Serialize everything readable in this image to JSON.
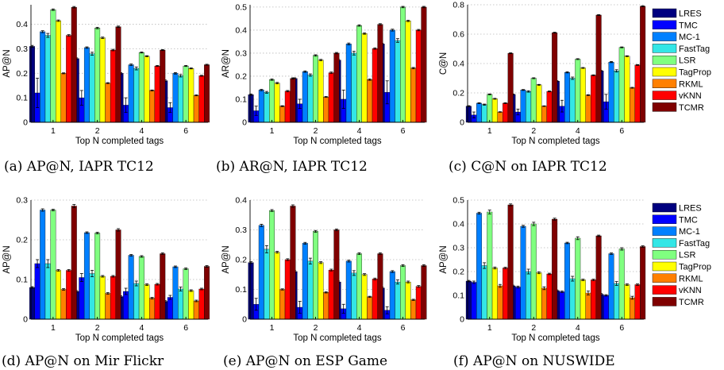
{
  "methods": [
    "LRES",
    "TMC",
    "MC-1",
    "FastTag",
    "LSR",
    "TagProp",
    "RKML",
    "vKNN",
    "TCMR"
  ],
  "colors": {
    "LRES": "#00007f",
    "TMC": "#0000ff",
    "MC-1": "#0080ff",
    "FastTag": "#33e6e6",
    "LSR": "#80ff80",
    "TagProp": "#ffff00",
    "RKML": "#ff8000",
    "vKNN": "#ff0000",
    "TCMR": "#7f0000"
  },
  "chart_data": [
    {
      "type": "bar",
      "caption": "(a) AP@N, IAPR TC12",
      "xlabel": "Top N completed tags",
      "ylabel": "AP@N",
      "categories": [
        "1",
        "2",
        "4",
        "6"
      ],
      "ylim": [
        0,
        0.48
      ],
      "yticks": [
        0,
        0.1,
        0.2,
        0.3,
        0.4
      ],
      "yticklabels": [
        "0",
        "0.1",
        "0.2",
        "0.3",
        "0.4"
      ],
      "series": [
        {
          "name": "LRES",
          "values": [
            0.31,
            0.26,
            0.2,
            0.17
          ],
          "err": [
            0.004,
            0.003,
            0.003,
            0.003
          ]
        },
        {
          "name": "TMC",
          "values": [
            0.12,
            0.1,
            0.07,
            0.06
          ],
          "err": [
            0.06,
            0.03,
            0.03,
            0.02
          ]
        },
        {
          "name": "MC-1",
          "values": [
            0.37,
            0.305,
            0.235,
            0.2
          ],
          "err": [
            0.004,
            0.003,
            0.003,
            0.003
          ]
        },
        {
          "name": "FastTag",
          "values": [
            0.355,
            0.28,
            0.22,
            0.19
          ],
          "err": [
            0.008,
            0.006,
            0.006,
            0.005
          ]
        },
        {
          "name": "LSR",
          "values": [
            0.46,
            0.385,
            0.285,
            0.23
          ],
          "err": [
            0.003,
            0.003,
            0.002,
            0.002
          ]
        },
        {
          "name": "TagProp",
          "values": [
            0.415,
            0.345,
            0.27,
            0.22
          ],
          "err": [
            0.003,
            0.003,
            0.002,
            0.002
          ]
        },
        {
          "name": "RKML",
          "values": [
            0.2,
            0.16,
            0.13,
            0.11
          ],
          "err": [
            0.002,
            0.002,
            0.002,
            0.002
          ]
        },
        {
          "name": "vKNN",
          "values": [
            0.355,
            0.295,
            0.23,
            0.19
          ],
          "err": [
            0.003,
            0.003,
            0.002,
            0.002
          ]
        },
        {
          "name": "TCMR",
          "values": [
            0.47,
            0.39,
            0.295,
            0.235
          ],
          "err": [
            0.003,
            0.003,
            0.002,
            0.002
          ]
        }
      ]
    },
    {
      "type": "bar",
      "caption": "(b) AR@N, IAPR TC12",
      "xlabel": "Top N completed tags",
      "ylabel": "AR@N",
      "categories": [
        "1",
        "2",
        "4",
        "6"
      ],
      "ylim": [
        0,
        0.51
      ],
      "yticks": [
        0,
        0.1,
        0.2,
        0.3,
        0.4,
        0.5
      ],
      "yticklabels": [
        "0",
        "0.1",
        "0.2",
        "0.3",
        "0.4",
        "0.5"
      ],
      "series": [
        {
          "name": "LRES",
          "values": [
            0.12,
            0.19,
            0.27,
            0.34
          ],
          "err": [
            0.003,
            0.003,
            0.003,
            0.003
          ]
        },
        {
          "name": "TMC",
          "values": [
            0.05,
            0.08,
            0.1,
            0.13
          ],
          "err": [
            0.02,
            0.02,
            0.04,
            0.05
          ]
        },
        {
          "name": "MC-1",
          "values": [
            0.14,
            0.22,
            0.34,
            0.4
          ],
          "err": [
            0.003,
            0.003,
            0.004,
            0.004
          ]
        },
        {
          "name": "FastTag",
          "values": [
            0.13,
            0.205,
            0.3,
            0.355
          ],
          "err": [
            0.004,
            0.005,
            0.008,
            0.008
          ]
        },
        {
          "name": "LSR",
          "values": [
            0.185,
            0.29,
            0.42,
            0.5
          ],
          "err": [
            0.003,
            0.003,
            0.003,
            0.003
          ]
        },
        {
          "name": "TagProp",
          "values": [
            0.17,
            0.27,
            0.385,
            0.44
          ],
          "err": [
            0.003,
            0.003,
            0.003,
            0.003
          ]
        },
        {
          "name": "RKML",
          "values": [
            0.07,
            0.11,
            0.185,
            0.235
          ],
          "err": [
            0.002,
            0.002,
            0.003,
            0.003
          ]
        },
        {
          "name": "vKNN",
          "values": [
            0.135,
            0.215,
            0.32,
            0.4
          ],
          "err": [
            0.003,
            0.003,
            0.003,
            0.003
          ]
        },
        {
          "name": "TCMR",
          "values": [
            0.19,
            0.3,
            0.425,
            0.5
          ],
          "err": [
            0.003,
            0.003,
            0.003,
            0.003
          ]
        }
      ]
    },
    {
      "type": "bar",
      "caption": "(c) C@N on IAPR TC12",
      "xlabel": "Top N completed tags",
      "ylabel": "C@N",
      "categories": [
        "1",
        "2",
        "4",
        "6"
      ],
      "ylim": [
        0,
        0.8
      ],
      "yticks": [
        0,
        0.2,
        0.4,
        0.6,
        0.8
      ],
      "yticklabels": [
        "0",
        "0.2",
        "0.4",
        "0.6",
        "0.8"
      ],
      "series": [
        {
          "name": "LRES",
          "values": [
            0.11,
            0.19,
            0.28,
            0.35
          ],
          "err": [
            0.003,
            0.003,
            0.003,
            0.003
          ]
        },
        {
          "name": "TMC",
          "values": [
            0.05,
            0.07,
            0.11,
            0.14
          ],
          "err": [
            0.02,
            0.02,
            0.04,
            0.05
          ]
        },
        {
          "name": "MC-1",
          "values": [
            0.13,
            0.22,
            0.34,
            0.41
          ],
          "err": [
            0.003,
            0.003,
            0.004,
            0.004
          ]
        },
        {
          "name": "FastTag",
          "values": [
            0.12,
            0.21,
            0.3,
            0.35
          ],
          "err": [
            0.004,
            0.005,
            0.008,
            0.008
          ]
        },
        {
          "name": "LSR",
          "values": [
            0.19,
            0.3,
            0.43,
            0.51
          ],
          "err": [
            0.003,
            0.003,
            0.003,
            0.003
          ]
        },
        {
          "name": "TagProp",
          "values": [
            0.16,
            0.255,
            0.37,
            0.45
          ],
          "err": [
            0.003,
            0.003,
            0.003,
            0.003
          ]
        },
        {
          "name": "RKML",
          "values": [
            0.07,
            0.11,
            0.185,
            0.235
          ],
          "err": [
            0.002,
            0.002,
            0.003,
            0.003
          ]
        },
        {
          "name": "vKNN",
          "values": [
            0.13,
            0.21,
            0.32,
            0.39
          ],
          "err": [
            0.003,
            0.003,
            0.003,
            0.003
          ]
        },
        {
          "name": "TCMR",
          "values": [
            0.47,
            0.61,
            0.73,
            0.79
          ],
          "err": [
            0.003,
            0.003,
            0.003,
            0.003
          ]
        }
      ]
    },
    {
      "type": "bar",
      "caption": "(d) AP@N on Mir Flickr",
      "xlabel": "Top N completed tags",
      "ylabel": "AP@N",
      "categories": [
        "1",
        "2",
        "4",
        "6"
      ],
      "ylim": [
        0,
        0.3
      ],
      "yticks": [
        0,
        0.1,
        0.2,
        0.3
      ],
      "yticklabels": [
        "0",
        "0.1",
        "0.2",
        "0.3"
      ],
      "series": [
        {
          "name": "LRES",
          "values": [
            0.08,
            0.07,
            0.057,
            0.045
          ],
          "err": [
            0.002,
            0.002,
            0.002,
            0.002
          ]
        },
        {
          "name": "TMC",
          "values": [
            0.14,
            0.105,
            0.07,
            0.055
          ],
          "err": [
            0.01,
            0.01,
            0.008,
            0.005
          ]
        },
        {
          "name": "MC-1",
          "values": [
            0.275,
            0.218,
            0.161,
            0.132
          ],
          "err": [
            0.003,
            0.002,
            0.002,
            0.002
          ]
        },
        {
          "name": "FastTag",
          "values": [
            0.14,
            0.115,
            0.09,
            0.076
          ],
          "err": [
            0.01,
            0.008,
            0.006,
            0.005
          ]
        },
        {
          "name": "LSR",
          "values": [
            0.275,
            0.217,
            0.158,
            0.127
          ],
          "err": [
            0.002,
            0.002,
            0.002,
            0.002
          ]
        },
        {
          "name": "TagProp",
          "values": [
            0.123,
            0.108,
            0.087,
            0.072
          ],
          "err": [
            0.002,
            0.002,
            0.002,
            0.002
          ]
        },
        {
          "name": "RKML",
          "values": [
            0.075,
            0.065,
            0.053,
            0.046
          ],
          "err": [
            0.002,
            0.002,
            0.002,
            0.002
          ]
        },
        {
          "name": "vKNN",
          "values": [
            0.123,
            0.108,
            0.088,
            0.076
          ],
          "err": [
            0.002,
            0.002,
            0.002,
            0.002
          ]
        },
        {
          "name": "TCMR",
          "values": [
            0.285,
            0.225,
            0.165,
            0.133
          ],
          "err": [
            0.004,
            0.003,
            0.002,
            0.002
          ]
        }
      ]
    },
    {
      "type": "bar",
      "caption": "(e) AP@N on ESP Game",
      "xlabel": "Top N completed tags",
      "ylabel": "AP@N",
      "categories": [
        "1",
        "2",
        "4",
        "6"
      ],
      "ylim": [
        0,
        0.4
      ],
      "yticks": [
        0,
        0.1,
        0.2,
        0.3,
        0.4
      ],
      "yticklabels": [
        "0",
        "0.1",
        "0.2",
        "0.3",
        "0.4"
      ],
      "series": [
        {
          "name": "LRES",
          "values": [
            0.19,
            0.16,
            0.125,
            0.105
          ],
          "err": [
            0.003,
            0.003,
            0.003,
            0.003
          ]
        },
        {
          "name": "TMC",
          "values": [
            0.05,
            0.04,
            0.035,
            0.03
          ],
          "err": [
            0.02,
            0.02,
            0.015,
            0.012
          ]
        },
        {
          "name": "MC-1",
          "values": [
            0.315,
            0.255,
            0.195,
            0.16
          ],
          "err": [
            0.004,
            0.003,
            0.003,
            0.003
          ]
        },
        {
          "name": "FastTag",
          "values": [
            0.235,
            0.195,
            0.155,
            0.125
          ],
          "err": [
            0.012,
            0.01,
            0.008,
            0.007
          ]
        },
        {
          "name": "LSR",
          "values": [
            0.365,
            0.295,
            0.22,
            0.18
          ],
          "err": [
            0.003,
            0.003,
            0.003,
            0.003
          ]
        },
        {
          "name": "TagProp",
          "values": [
            0.225,
            0.19,
            0.15,
            0.125
          ],
          "err": [
            0.003,
            0.003,
            0.003,
            0.003
          ]
        },
        {
          "name": "RKML",
          "values": [
            0.1,
            0.09,
            0.075,
            0.065
          ],
          "err": [
            0.002,
            0.002,
            0.002,
            0.002
          ]
        },
        {
          "name": "vKNN",
          "values": [
            0.2,
            0.165,
            0.135,
            0.11
          ],
          "err": [
            0.003,
            0.003,
            0.003,
            0.003
          ]
        },
        {
          "name": "TCMR",
          "values": [
            0.38,
            0.3,
            0.22,
            0.18
          ],
          "err": [
            0.004,
            0.003,
            0.003,
            0.003
          ]
        }
      ]
    },
    {
      "type": "bar",
      "caption": "(f) AP@N on NUSWIDE",
      "xlabel": "Top N completed tags",
      "ylabel": "AP@N",
      "categories": [
        "1",
        "2",
        "4",
        "6"
      ],
      "ylim": [
        0,
        0.5
      ],
      "yticks": [
        0,
        0.1,
        0.2,
        0.3,
        0.4,
        0.5
      ],
      "yticklabels": [
        "0",
        "0.1",
        "0.2",
        "0.3",
        "0.4",
        "0.5"
      ],
      "series": [
        {
          "name": "LRES",
          "values": [
            0.16,
            0.14,
            0.12,
            0.105
          ],
          "err": [
            0.003,
            0.003,
            0.003,
            0.003
          ]
        },
        {
          "name": "TMC",
          "values": [
            0.155,
            0.135,
            0.115,
            0.1
          ],
          "err": [
            0.005,
            0.004,
            0.003,
            0.003
          ]
        },
        {
          "name": "MC-1",
          "values": [
            0.445,
            0.39,
            0.32,
            0.275
          ],
          "err": [
            0.004,
            0.004,
            0.003,
            0.003
          ]
        },
        {
          "name": "FastTag",
          "values": [
            0.225,
            0.2,
            0.17,
            0.15
          ],
          "err": [
            0.012,
            0.01,
            0.01,
            0.008
          ]
        },
        {
          "name": "LSR",
          "values": [
            0.45,
            0.4,
            0.34,
            0.295
          ],
          "err": [
            0.008,
            0.007,
            0.006,
            0.005
          ]
        },
        {
          "name": "TagProp",
          "values": [
            0.215,
            0.195,
            0.165,
            0.145
          ],
          "err": [
            0.004,
            0.004,
            0.003,
            0.003
          ]
        },
        {
          "name": "RKML",
          "values": [
            0.14,
            0.13,
            0.11,
            0.09
          ],
          "err": [
            0.006,
            0.006,
            0.008,
            0.006
          ]
        },
        {
          "name": "vKNN",
          "values": [
            0.215,
            0.19,
            0.165,
            0.145
          ],
          "err": [
            0.003,
            0.003,
            0.003,
            0.003
          ]
        },
        {
          "name": "TCMR",
          "values": [
            0.48,
            0.42,
            0.35,
            0.305
          ],
          "err": [
            0.004,
            0.004,
            0.003,
            0.003
          ]
        }
      ]
    }
  ]
}
